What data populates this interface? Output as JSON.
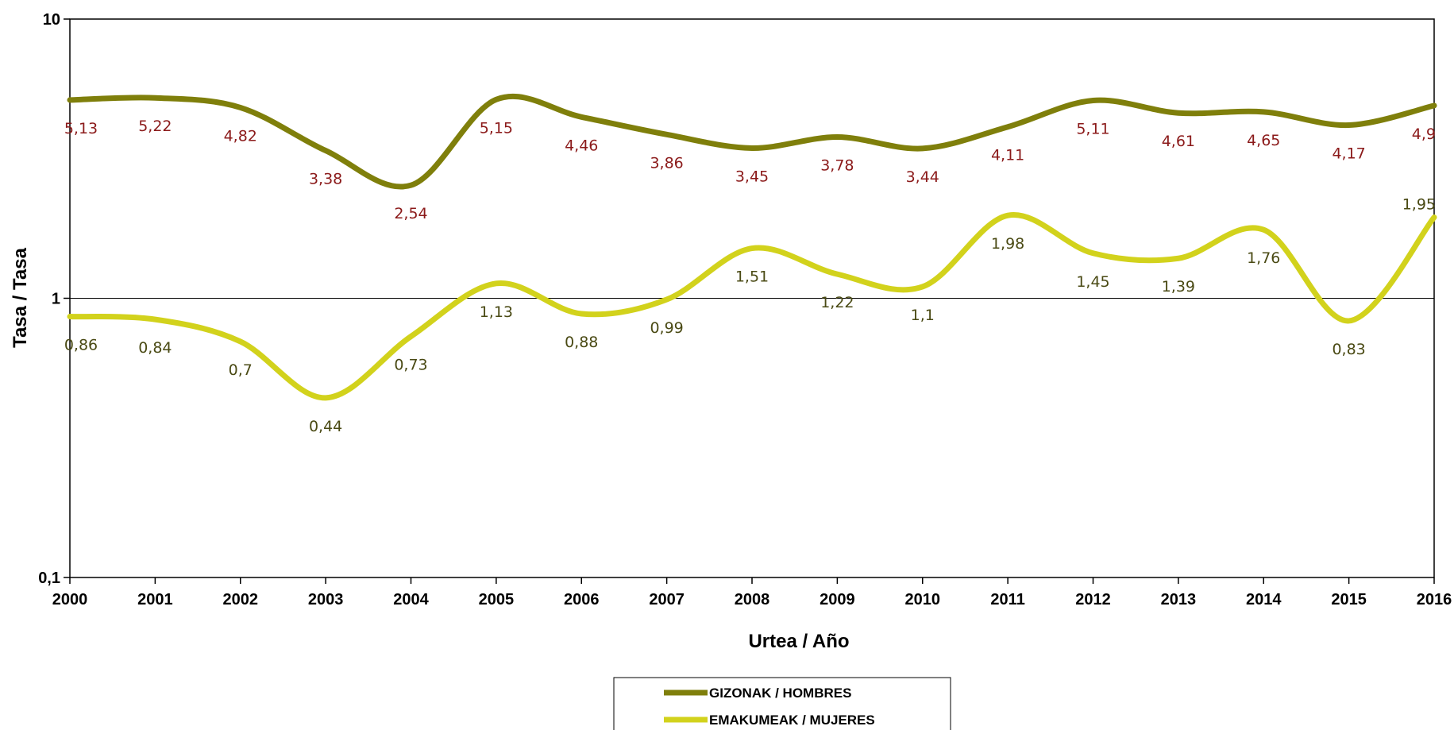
{
  "chart_data": {
    "type": "line",
    "xlabel": "Urtea / Año",
    "ylabel": "Tasa / Tasa",
    "yscale": "log",
    "ylim": [
      0.1,
      10
    ],
    "yticks": [
      {
        "value": 10,
        "label": "10"
      },
      {
        "value": 1,
        "label": "1"
      },
      {
        "value": 0.1,
        "label": "0,1"
      }
    ],
    "categories": [
      "2000",
      "2001",
      "2002",
      "2003",
      "2004",
      "2005",
      "2006",
      "2007",
      "2008",
      "2009",
      "2010",
      "2011",
      "2012",
      "2013",
      "2014",
      "2015",
      "2016"
    ],
    "legend_position": "bottom-center",
    "series": [
      {
        "name": "GIZONAK / HOMBRES",
        "color": "#7f7f0b",
        "label_color": "#8b1a1a",
        "values": [
          5.13,
          5.22,
          4.82,
          3.38,
          2.54,
          5.15,
          4.46,
          3.86,
          3.45,
          3.78,
          3.44,
          4.11,
          5.11,
          4.61,
          4.65,
          4.17,
          4.9
        ],
        "labels": [
          "5,13",
          "5,22",
          "4,82",
          "3,38",
          "2,54",
          "5,15",
          "4,46",
          "3,86",
          "3,45",
          "3,78",
          "3,44",
          "4,11",
          "5,11",
          "4,61",
          "4,65",
          "4,17",
          "4,9"
        ]
      },
      {
        "name": "EMAKUMEAK / MUJERES",
        "color": "#d2d21c",
        "label_color": "#4a4a14",
        "values": [
          0.86,
          0.84,
          0.7,
          0.44,
          0.73,
          1.13,
          0.88,
          0.99,
          1.51,
          1.22,
          1.1,
          1.98,
          1.45,
          1.39,
          1.76,
          0.83,
          1.95
        ],
        "labels": [
          "0,86",
          "0,84",
          "0,7",
          "0,44",
          "0,73",
          "1,13",
          "0,88",
          "0,99",
          "1,51",
          "1,22",
          "1,1",
          "1,98",
          "1,45",
          "1,39",
          "1,76",
          "0,83",
          "1,95"
        ]
      }
    ]
  }
}
